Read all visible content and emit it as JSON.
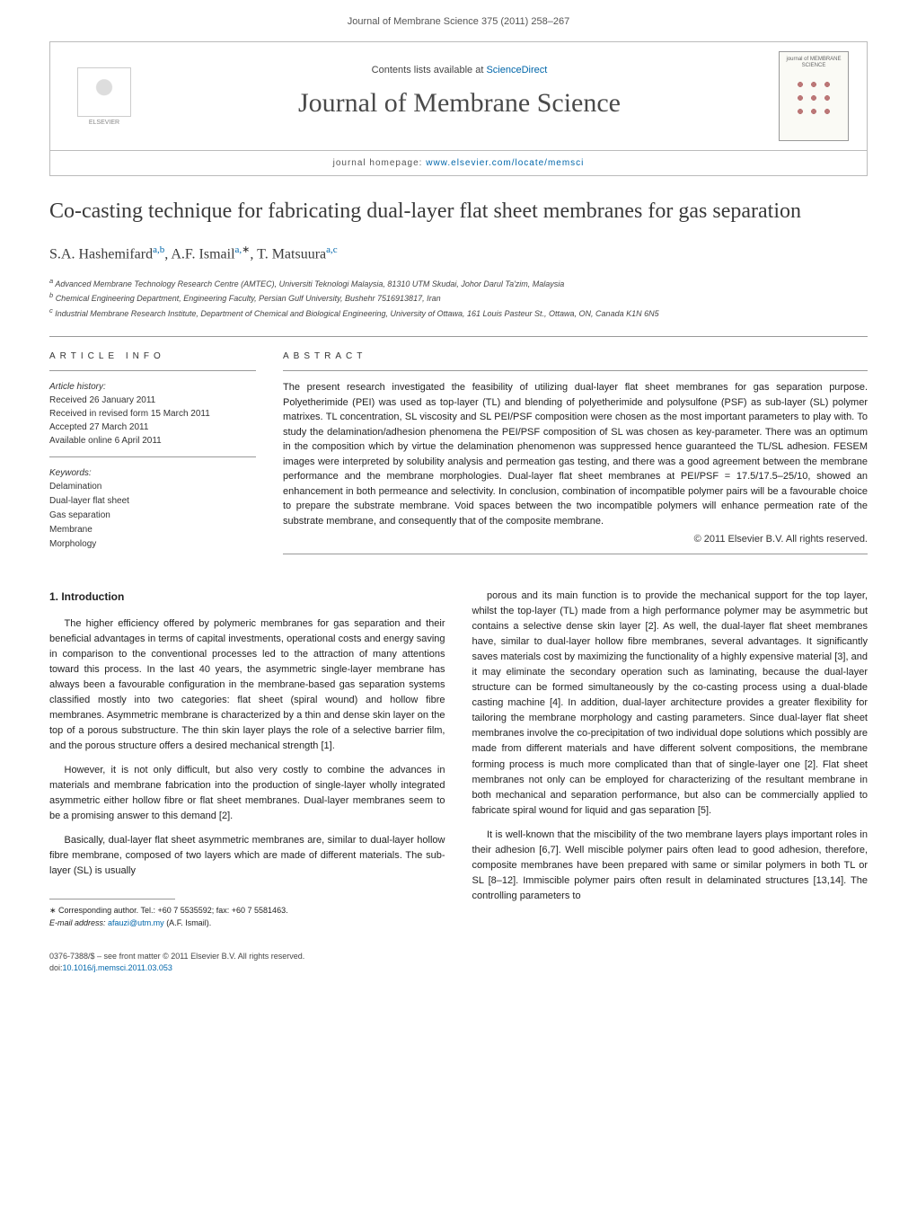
{
  "header": {
    "citation": "Journal of Membrane Science 375 (2011) 258–267",
    "contents_prefix": "Contents lists available at ",
    "contents_link": "ScienceDirect",
    "journal_title": "Journal of Membrane Science",
    "homepage_prefix": "journal homepage: ",
    "homepage_url": "www.elsevier.com/locate/memsci",
    "publisher_logo": "ELSEVIER",
    "cover_text": "journal of MEMBRANE SCIENCE"
  },
  "article": {
    "title": "Co-casting technique for fabricating dual-layer flat sheet membranes for gas separation",
    "authors_html": "S.A. Hashemifard",
    "author1": "S.A. Hashemifard",
    "author1_sup": "a,b",
    "author2": "A.F. Ismail",
    "author2_sup": "a,",
    "author2_star": "∗",
    "author3": "T. Matsuura",
    "author3_sup": "a,c",
    "affiliations": {
      "a": "Advanced Membrane Technology Research Centre (AMTEC), Universiti Teknologi Malaysia, 81310 UTM Skudai, Johor Darul Ta'zim, Malaysia",
      "b": "Chemical Engineering Department, Engineering Faculty, Persian Gulf University, Bushehr 7516913817, Iran",
      "c": "Industrial Membrane Research Institute, Department of Chemical and Biological Engineering, University of Ottawa, 161 Louis Pasteur St., Ottawa, ON, Canada K1N 6N5"
    }
  },
  "article_info": {
    "heading": "ARTICLE INFO",
    "history_label": "Article history:",
    "received": "Received 26 January 2011",
    "revised": "Received in revised form 15 March 2011",
    "accepted": "Accepted 27 March 2011",
    "available": "Available online 6 April 2011",
    "keywords_label": "Keywords:",
    "keywords": [
      "Delamination",
      "Dual-layer flat sheet",
      "Gas separation",
      "Membrane",
      "Morphology"
    ]
  },
  "abstract": {
    "heading": "ABSTRACT",
    "text": "The present research investigated the feasibility of utilizing dual-layer flat sheet membranes for gas separation purpose. Polyetherimide (PEI) was used as top-layer (TL) and blending of polyetherimide and polysulfone (PSF) as sub-layer (SL) polymer matrixes. TL concentration, SL viscosity and SL PEI/PSF composition were chosen as the most important parameters to play with. To study the delamination/adhesion phenomena the PEI/PSF composition of SL was chosen as key-parameter. There was an optimum in the composition which by virtue the delamination phenomenon was suppressed hence guaranteed the TL/SL adhesion. FESEM images were interpreted by solubility analysis and permeation gas testing, and there was a good agreement between the membrane performance and the membrane morphologies. Dual-layer flat sheet membranes at PEI/PSF = 17.5/17.5–25/10, showed an enhancement in both permeance and selectivity. In conclusion, combination of incompatible polymer pairs will be a favourable choice to prepare the substrate membrane. Void spaces between the two incompatible polymers will enhance permeation rate of the substrate membrane, and consequently that of the composite membrane.",
    "copyright": "© 2011 Elsevier B.V. All rights reserved."
  },
  "body": {
    "section_heading": "1. Introduction",
    "p1": "The higher efficiency offered by polymeric membranes for gas separation and their beneficial advantages in terms of capital investments, operational costs and energy saving in comparison to the conventional processes led to the attraction of many attentions toward this process. In the last 40 years, the asymmetric single-layer membrane has always been a favourable configuration in the membrane-based gas separation systems classified mostly into two categories: flat sheet (spiral wound) and hollow fibre membranes. Asymmetric membrane is characterized by a thin and dense skin layer on the top of a porous substructure. The thin skin layer plays the role of a selective barrier film, and the porous structure offers a desired mechanical strength [1].",
    "p2": "However, it is not only difficult, but also very costly to combine the advances in materials and membrane fabrication into the production of single-layer wholly integrated asymmetric either hollow fibre or flat sheet membranes. Dual-layer membranes seem to be a promising answer to this demand [2].",
    "p3": "Basically, dual-layer flat sheet asymmetric membranes are, similar to dual-layer hollow fibre membrane, composed of two layers which are made of different materials. The sub-layer (SL) is usually",
    "p4": "porous and its main function is to provide the mechanical support for the top layer, whilst the top-layer (TL) made from a high performance polymer may be asymmetric but contains a selective dense skin layer [2]. As well, the dual-layer flat sheet membranes have, similar to dual-layer hollow fibre membranes, several advantages. It significantly saves materials cost by maximizing the functionality of a highly expensive material [3], and it may eliminate the secondary operation such as laminating, because the dual-layer structure can be formed simultaneously by the co-casting process using a dual-blade casting machine [4]. In addition, dual-layer architecture provides a greater flexibility for tailoring the membrane morphology and casting parameters. Since dual-layer flat sheet membranes involve the co-precipitation of two individual dope solutions which possibly are made from different materials and have different solvent compositions, the membrane forming process is much more complicated than that of single-layer one [2]. Flat sheet membranes not only can be employed for characterizing of the resultant membrane in both mechanical and separation performance, but also can be commercially applied to fabricate spiral wound for liquid and gas separation [5].",
    "p5": "It is well-known that the miscibility of the two membrane layers plays important roles in their adhesion [6,7]. Well miscible polymer pairs often lead to good adhesion, therefore, composite membranes have been prepared with same or similar polymers in both TL or SL [8–12]. Immiscible polymer pairs often result in delaminated structures [13,14]. The controlling parameters to"
  },
  "footnotes": {
    "corresp_label": "∗ Corresponding author. Tel.: +60 7 5535592; fax: +60 7 5581463.",
    "email_label": "E-mail address: ",
    "email": "afauzi@utm.my",
    "email_name": " (A.F. Ismail)."
  },
  "bottom": {
    "issn": "0376-7388/$ – see front matter © 2011 Elsevier B.V. All rights reserved.",
    "doi_label": "doi:",
    "doi": "10.1016/j.memsci.2011.03.053"
  },
  "colors": {
    "link": "#0066aa",
    "text": "#333333",
    "border": "#bbbbbb"
  }
}
